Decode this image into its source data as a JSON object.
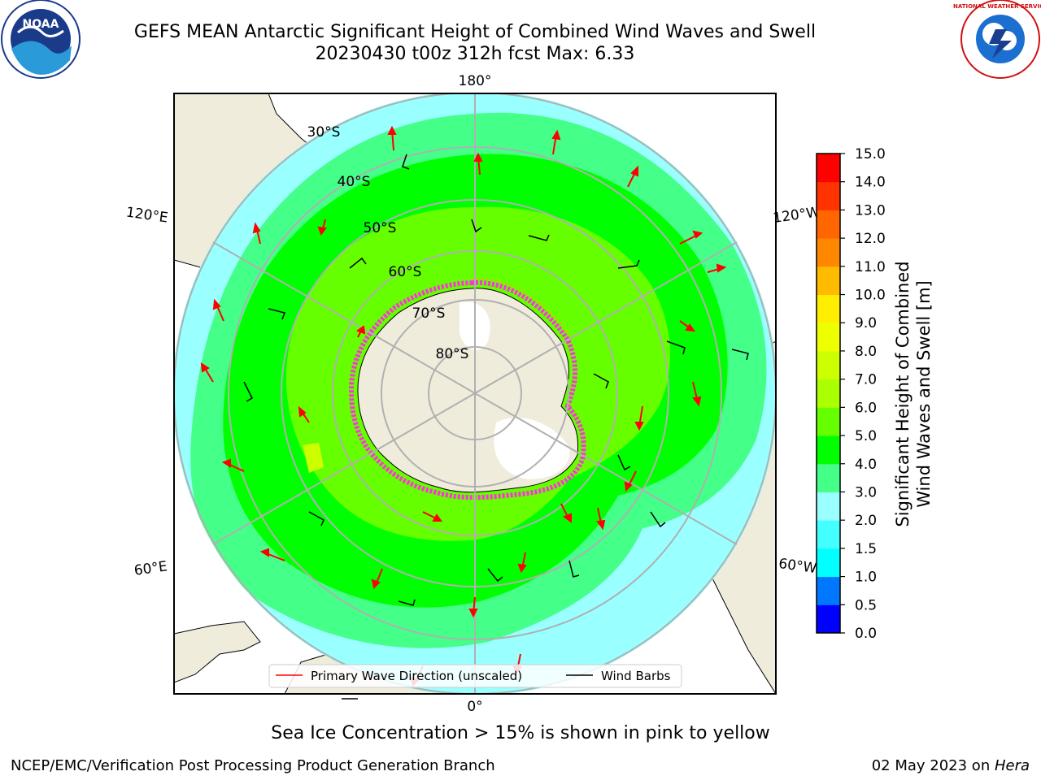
{
  "title": {
    "line1": "GEFS MEAN Antarctic Significant Height of Combined Wind Waves and Swell",
    "line2": "20230430 t00z 312h fcst   Max: 6.33"
  },
  "logos": {
    "left": {
      "text": "NOAA",
      "icon": "noaa-logo-icon"
    },
    "right": {
      "text": "NATIONAL WEATHER SERVICE",
      "icon": "nws-logo-icon"
    }
  },
  "map": {
    "projection": "south-polar-stereographic",
    "lon_labels": {
      "top": "180°",
      "bottom": "0°",
      "left_upper": "120°E",
      "left_lower": "60°E",
      "right_upper": "120°W",
      "right_lower": "60°W"
    },
    "lat_labels": [
      "30°S",
      "40°S",
      "50°S",
      "60°S",
      "70°S",
      "80°S"
    ]
  },
  "legend": {
    "items": [
      {
        "label": "Primary Wave Direction (unscaled)",
        "color": "#ff0000"
      },
      {
        "label": "Wind Barbs",
        "color": "#000000"
      }
    ]
  },
  "colorbar": {
    "label_line1": "Significant Height of Combined",
    "label_line2": "Wind Waves and Swell [m]",
    "ticks": [
      "0.0",
      "0.5",
      "1.0",
      "1.5",
      "2.0",
      "3.0",
      "4.0",
      "5.0",
      "6.0",
      "7.0",
      "8.0",
      "9.0",
      "10.0",
      "11.0",
      "12.0",
      "13.0",
      "14.0",
      "15.0"
    ],
    "colors": [
      "#0000ff",
      "#0077ff",
      "#00ffff",
      "#44ffff",
      "#99ffff",
      "#44ff88",
      "#00ff00",
      "#66ff00",
      "#aaff00",
      "#ccff00",
      "#eeff00",
      "#ffee00",
      "#ffbb00",
      "#ff8800",
      "#ff6600",
      "#ff3300",
      "#ff0000"
    ]
  },
  "caption": "Sea Ice Concentration > 15% is shown in pink to yellow",
  "footer": {
    "left": "NCEP/EMC/Verification Post Processing Product Generation Branch",
    "right_date": "02 May 2023 on ",
    "right_host": "Hera"
  }
}
